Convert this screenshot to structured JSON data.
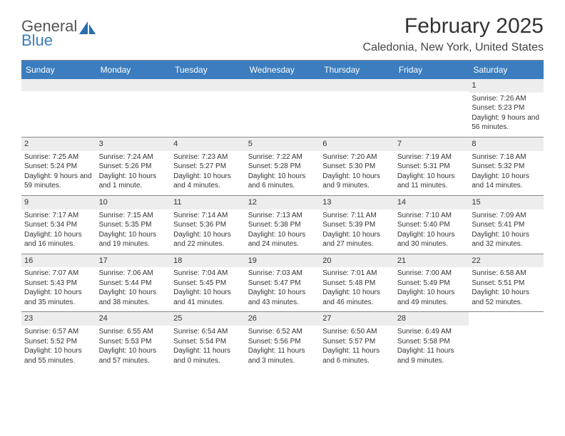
{
  "logo": {
    "text1": "General",
    "text2": "Blue",
    "icon_color": "#2b6db0"
  },
  "title": "February 2025",
  "location": "Caledonia, New York, United States",
  "header_bg": "#3b7dbf",
  "header_fg": "#ffffff",
  "daynum_bg": "#ededed",
  "days": [
    "Sunday",
    "Monday",
    "Tuesday",
    "Wednesday",
    "Thursday",
    "Friday",
    "Saturday"
  ],
  "weeks": [
    [
      null,
      null,
      null,
      null,
      null,
      null,
      {
        "n": "1",
        "sunrise": "7:26 AM",
        "sunset": "5:23 PM",
        "daylight": "9 hours and 56 minutes."
      }
    ],
    [
      {
        "n": "2",
        "sunrise": "7:25 AM",
        "sunset": "5:24 PM",
        "daylight": "9 hours and 59 minutes."
      },
      {
        "n": "3",
        "sunrise": "7:24 AM",
        "sunset": "5:26 PM",
        "daylight": "10 hours and 1 minute."
      },
      {
        "n": "4",
        "sunrise": "7:23 AM",
        "sunset": "5:27 PM",
        "daylight": "10 hours and 4 minutes."
      },
      {
        "n": "5",
        "sunrise": "7:22 AM",
        "sunset": "5:28 PM",
        "daylight": "10 hours and 6 minutes."
      },
      {
        "n": "6",
        "sunrise": "7:20 AM",
        "sunset": "5:30 PM",
        "daylight": "10 hours and 9 minutes."
      },
      {
        "n": "7",
        "sunrise": "7:19 AM",
        "sunset": "5:31 PM",
        "daylight": "10 hours and 11 minutes."
      },
      {
        "n": "8",
        "sunrise": "7:18 AM",
        "sunset": "5:32 PM",
        "daylight": "10 hours and 14 minutes."
      }
    ],
    [
      {
        "n": "9",
        "sunrise": "7:17 AM",
        "sunset": "5:34 PM",
        "daylight": "10 hours and 16 minutes."
      },
      {
        "n": "10",
        "sunrise": "7:15 AM",
        "sunset": "5:35 PM",
        "daylight": "10 hours and 19 minutes."
      },
      {
        "n": "11",
        "sunrise": "7:14 AM",
        "sunset": "5:36 PM",
        "daylight": "10 hours and 22 minutes."
      },
      {
        "n": "12",
        "sunrise": "7:13 AM",
        "sunset": "5:38 PM",
        "daylight": "10 hours and 24 minutes."
      },
      {
        "n": "13",
        "sunrise": "7:11 AM",
        "sunset": "5:39 PM",
        "daylight": "10 hours and 27 minutes."
      },
      {
        "n": "14",
        "sunrise": "7:10 AM",
        "sunset": "5:40 PM",
        "daylight": "10 hours and 30 minutes."
      },
      {
        "n": "15",
        "sunrise": "7:09 AM",
        "sunset": "5:41 PM",
        "daylight": "10 hours and 32 minutes."
      }
    ],
    [
      {
        "n": "16",
        "sunrise": "7:07 AM",
        "sunset": "5:43 PM",
        "daylight": "10 hours and 35 minutes."
      },
      {
        "n": "17",
        "sunrise": "7:06 AM",
        "sunset": "5:44 PM",
        "daylight": "10 hours and 38 minutes."
      },
      {
        "n": "18",
        "sunrise": "7:04 AM",
        "sunset": "5:45 PM",
        "daylight": "10 hours and 41 minutes."
      },
      {
        "n": "19",
        "sunrise": "7:03 AM",
        "sunset": "5:47 PM",
        "daylight": "10 hours and 43 minutes."
      },
      {
        "n": "20",
        "sunrise": "7:01 AM",
        "sunset": "5:48 PM",
        "daylight": "10 hours and 46 minutes."
      },
      {
        "n": "21",
        "sunrise": "7:00 AM",
        "sunset": "5:49 PM",
        "daylight": "10 hours and 49 minutes."
      },
      {
        "n": "22",
        "sunrise": "6:58 AM",
        "sunset": "5:51 PM",
        "daylight": "10 hours and 52 minutes."
      }
    ],
    [
      {
        "n": "23",
        "sunrise": "6:57 AM",
        "sunset": "5:52 PM",
        "daylight": "10 hours and 55 minutes."
      },
      {
        "n": "24",
        "sunrise": "6:55 AM",
        "sunset": "5:53 PM",
        "daylight": "10 hours and 57 minutes."
      },
      {
        "n": "25",
        "sunrise": "6:54 AM",
        "sunset": "5:54 PM",
        "daylight": "11 hours and 0 minutes."
      },
      {
        "n": "26",
        "sunrise": "6:52 AM",
        "sunset": "5:56 PM",
        "daylight": "11 hours and 3 minutes."
      },
      {
        "n": "27",
        "sunrise": "6:50 AM",
        "sunset": "5:57 PM",
        "daylight": "11 hours and 6 minutes."
      },
      {
        "n": "28",
        "sunrise": "6:49 AM",
        "sunset": "5:58 PM",
        "daylight": "11 hours and 9 minutes."
      },
      null
    ]
  ],
  "labels": {
    "sunrise": "Sunrise: ",
    "sunset": "Sunset: ",
    "daylight": "Daylight: "
  }
}
